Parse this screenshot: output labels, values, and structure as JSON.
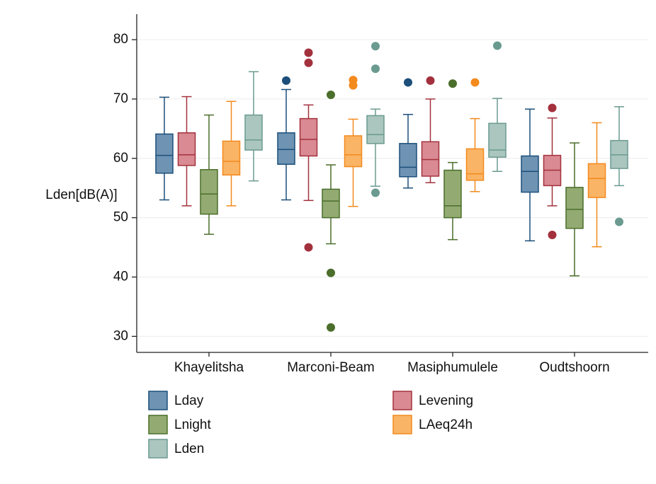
{
  "chart_data": {
    "type": "box",
    "y_label": "Lden[dB(A)]",
    "categories": [
      "Khayelitsha",
      "Marconi-Beam",
      "Masiphumulele",
      "Oudtshoorn"
    ],
    "ylim": [
      27.3,
      84.3
    ],
    "yticks": [
      30,
      40,
      50,
      60,
      70,
      80
    ],
    "grid": true,
    "series": [
      {
        "name": "Lday",
        "color": "#6e93b3",
        "line_color": "#1c4f7a",
        "min": [
          53,
          53,
          55,
          46.1
        ],
        "q1": [
          57.5,
          59,
          56.9,
          54.3
        ],
        "median": [
          60.5,
          61.5,
          58.5,
          57.8
        ],
        "q3": [
          64.1,
          64.3,
          62.5,
          60.4
        ],
        "max": [
          70.3,
          71.6,
          67.4,
          68.3
        ],
        "outliers": [
          [],
          [
            73.1
          ],
          [
            72.8
          ],
          []
        ]
      },
      {
        "name": "Levening",
        "color": "#d98a93",
        "line_color": "#a3313d",
        "min": [
          52,
          52.9,
          55.9,
          52
        ],
        "q1": [
          58.8,
          60.4,
          57,
          55.4
        ],
        "median": [
          60.6,
          63.2,
          59.8,
          58
        ],
        "q3": [
          64.3,
          66.7,
          62.8,
          60.5
        ],
        "max": [
          70.4,
          69,
          70,
          66.8
        ],
        "outliers": [
          [],
          [
            77.8,
            76.1,
            45
          ],
          [
            73.1
          ],
          [
            68.5,
            47.1
          ]
        ]
      },
      {
        "name": "Lnight",
        "color": "#93ab72",
        "line_color": "#4b6e2b",
        "min": [
          47.2,
          45.6,
          46.3,
          40.2
        ],
        "q1": [
          50.6,
          50,
          50,
          48.2
        ],
        "median": [
          54,
          52.8,
          52,
          51.4
        ],
        "q3": [
          58.1,
          54.8,
          58,
          55.1
        ],
        "max": [
          67.3,
          58.9,
          59.3,
          62.6
        ],
        "outliers": [
          [],
          [
            70.7,
            40.7,
            31.5
          ],
          [
            72.6
          ],
          []
        ]
      },
      {
        "name": "LAeq24h",
        "color": "#fab465",
        "line_color": "#f28a1e",
        "min": [
          52,
          51.9,
          54.4,
          45.1
        ],
        "q1": [
          57.2,
          58.6,
          56.3,
          53.4
        ],
        "median": [
          59.5,
          60.6,
          57.4,
          56.6
        ],
        "q3": [
          62.9,
          63.8,
          61.6,
          59.1
        ],
        "max": [
          69.6,
          66.6,
          66.7,
          66
        ],
        "outliers": [
          [],
          [
            73.2,
            72.3
          ],
          [
            72.8
          ],
          []
        ]
      },
      {
        "name": "Lden",
        "color": "#aac6be",
        "line_color": "#6a9a90",
        "min": [
          56.2,
          55.3,
          57.8,
          55.4
        ],
        "q1": [
          61.4,
          62.5,
          60.2,
          58.3
        ],
        "median": [
          63.1,
          64,
          61.4,
          60.6
        ],
        "q3": [
          67.3,
          67.2,
          65.9,
          63
        ],
        "max": [
          74.6,
          68.3,
          70.1,
          68.7
        ],
        "outliers": [
          [],
          [
            78.9,
            75.1,
            54.2
          ],
          [
            79
          ],
          [
            49.3
          ]
        ]
      }
    ]
  }
}
